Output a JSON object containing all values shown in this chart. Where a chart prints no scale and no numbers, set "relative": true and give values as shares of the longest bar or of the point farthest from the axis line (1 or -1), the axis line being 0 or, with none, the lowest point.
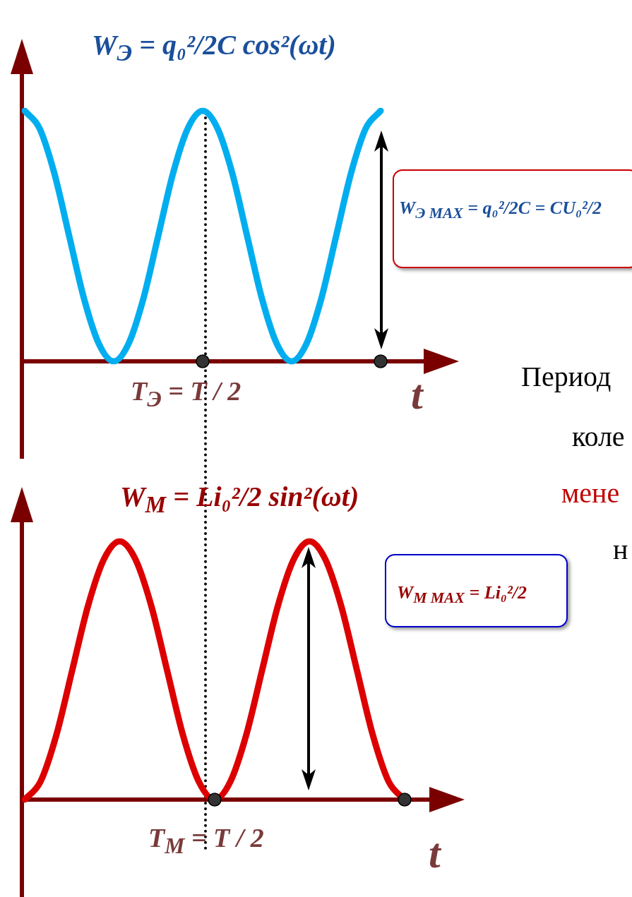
{
  "chart_data": [
    {
      "type": "line",
      "relative": true,
      "title": "W$_{Э}$ = q₀²/2C cos²(ωt)",
      "xlabel": "t",
      "categories": [
        null,
        null,
        null,
        null,
        null,
        null,
        null,
        null,
        null,
        null,
        null,
        null,
        null,
        null,
        null,
        null,
        null,
        null,
        null,
        null,
        null,
        null,
        null,
        null,
        null,
        null,
        null,
        null
      ],
      "series": [
        {
          "color": "#00aeef",
          "values": [
            1,
            0.93,
            0.75,
            0.5,
            0.25,
            0.07,
            0,
            0.07,
            0.25,
            0.5,
            0.75,
            0.93,
            1,
            0.93,
            0.75,
            0.5,
            0.25,
            0.07,
            0,
            0.07,
            0.25,
            0.5,
            0.75,
            0.93,
            1,
            null,
            null,
            null
          ]
        }
      ],
      "annotations": [
        "T$_{Э}$ = T / 2",
        "W$_{Э MAX}$ = q₀²/2C = CU₀²/2",
        "Период",
        "коле",
        "мене",
        "н"
      ]
    },
    {
      "type": "line",
      "relative": true,
      "title": "W$_{M}$ = Li₀²/2 sin²(ωt)",
      "xlabel": "t",
      "categories": [
        null,
        null,
        null,
        null,
        null,
        null,
        null,
        null,
        null,
        null,
        null,
        null,
        null,
        null,
        null,
        null,
        null,
        null,
        null,
        null,
        null,
        null,
        null,
        null,
        null,
        null,
        null,
        null
      ],
      "series": [
        {
          "color": "#dd0000",
          "values": [
            0,
            0.07,
            0.25,
            0.5,
            0.75,
            0.93,
            1,
            0.93,
            0.75,
            0.5,
            0.25,
            0.07,
            0,
            0.07,
            0.25,
            0.5,
            0.75,
            0.93,
            1,
            0.93,
            0.75,
            0.5,
            0.25,
            0.07,
            0,
            null,
            null,
            null
          ]
        }
      ],
      "annotations": [
        "T$_{M}$ = T / 2",
        "W$_{M MAX}$ = Li₀²/2"
      ]
    }
  ]
}
